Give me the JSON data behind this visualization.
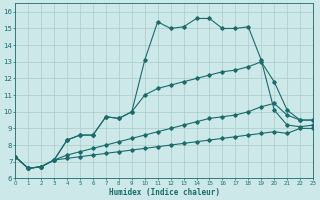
{
  "xlabel": "Humidex (Indice chaleur)",
  "xlim": [
    0,
    23
  ],
  "ylim": [
    6,
    16.5
  ],
  "yticks": [
    6,
    7,
    8,
    9,
    10,
    11,
    12,
    13,
    14,
    15,
    16
  ],
  "xticks": [
    0,
    1,
    2,
    3,
    4,
    5,
    6,
    7,
    8,
    9,
    10,
    11,
    12,
    13,
    14,
    15,
    16,
    17,
    18,
    19,
    20,
    21,
    22,
    23
  ],
  "background_color": "#cce8e8",
  "grid_color": "#aacccc",
  "line_color": "#1a6b6b",
  "lines": [
    {
      "x": [
        0,
        1,
        2,
        3,
        4,
        5,
        6,
        7,
        8,
        9,
        10,
        11,
        12,
        13,
        14,
        15,
        16,
        17,
        18,
        19,
        20,
        21,
        22,
        23
      ],
      "y": [
        7.3,
        6.6,
        6.7,
        7.1,
        8.3,
        8.6,
        8.6,
        9.7,
        9.6,
        10.0,
        13.1,
        15.4,
        15.0,
        15.1,
        15.6,
        15.6,
        15.0,
        15.0,
        15.1,
        13.1,
        10.1,
        9.2,
        9.1,
        9.2
      ]
    },
    {
      "x": [
        0,
        1,
        2,
        3,
        4,
        5,
        6,
        7,
        8,
        9,
        10,
        11,
        12,
        13,
        14,
        15,
        16,
        17,
        18,
        19,
        20,
        21,
        22,
        23
      ],
      "y": [
        7.3,
        6.6,
        6.7,
        7.1,
        8.3,
        8.6,
        8.6,
        9.7,
        9.6,
        10.0,
        11.0,
        11.4,
        11.6,
        11.8,
        12.0,
        12.2,
        12.4,
        12.5,
        12.7,
        13.0,
        11.8,
        10.1,
        9.5,
        9.5
      ]
    },
    {
      "x": [
        0,
        1,
        2,
        3,
        4,
        5,
        6,
        7,
        8,
        9,
        10,
        11,
        12,
        13,
        14,
        15,
        16,
        17,
        18,
        19,
        20,
        21,
        22,
        23
      ],
      "y": [
        7.3,
        6.6,
        6.7,
        7.1,
        7.4,
        7.6,
        7.8,
        8.0,
        8.2,
        8.4,
        8.6,
        8.8,
        9.0,
        9.2,
        9.4,
        9.6,
        9.7,
        9.8,
        10.0,
        10.3,
        10.5,
        9.8,
        9.5,
        9.5
      ]
    },
    {
      "x": [
        0,
        1,
        2,
        3,
        4,
        5,
        6,
        7,
        8,
        9,
        10,
        11,
        12,
        13,
        14,
        15,
        16,
        17,
        18,
        19,
        20,
        21,
        22,
        23
      ],
      "y": [
        7.3,
        6.6,
        6.7,
        7.1,
        7.2,
        7.3,
        7.4,
        7.5,
        7.6,
        7.7,
        7.8,
        7.9,
        8.0,
        8.1,
        8.2,
        8.3,
        8.4,
        8.5,
        8.6,
        8.7,
        8.8,
        8.7,
        9.0,
        9.0
      ]
    }
  ]
}
